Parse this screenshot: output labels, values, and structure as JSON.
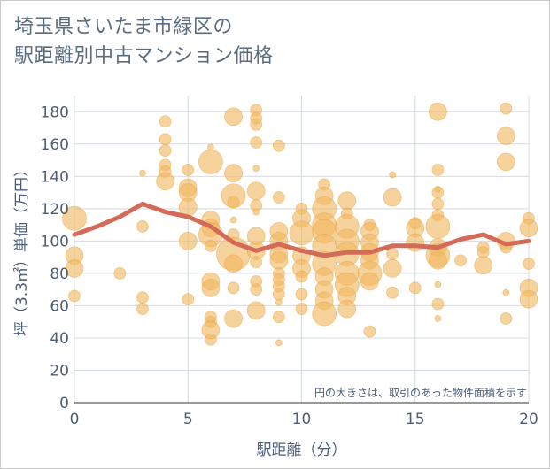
{
  "chart_data": {
    "type": "scatter",
    "title_lines": [
      "埼玉県さいたま市緑区の",
      "駅距離別中古マンション価格"
    ],
    "xlabel": "駅距離（分）",
    "ylabel": "坪（3.3㎡）単価（万円）",
    "xlim": [
      0,
      20
    ],
    "ylim": [
      0,
      190
    ],
    "x_ticks": [
      0,
      5,
      10,
      15,
      20
    ],
    "y_ticks": [
      0,
      20,
      40,
      60,
      80,
      100,
      120,
      140,
      160,
      180
    ],
    "grid": true,
    "annotation": "円の大きさは、取引のあった物件面積を示す",
    "bubble_color": "#f0b860",
    "line_color": "#d46a58",
    "series": [
      {
        "kind": "line",
        "x": [
          0,
          1,
          2,
          3,
          4,
          5,
          6,
          7,
          8,
          9,
          10,
          11,
          12,
          13,
          14,
          15,
          16,
          17,
          18,
          19,
          20
        ],
        "y": [
          104,
          109,
          115,
          123,
          118,
          115,
          109,
          99,
          94,
          98,
          94,
          91,
          93,
          93,
          97,
          97,
          96,
          101,
          104,
          98,
          100
        ]
      },
      {
        "kind": "bubble",
        "points": [
          {
            "x": 0,
            "y": 114,
            "s": 3
          },
          {
            "x": 0,
            "y": 91,
            "s": 2
          },
          {
            "x": 0,
            "y": 83,
            "s": 2
          },
          {
            "x": 0,
            "y": 66,
            "s": 1
          },
          {
            "x": 2,
            "y": 80,
            "s": 1
          },
          {
            "x": 3,
            "y": 142,
            "s": 0
          },
          {
            "x": 3,
            "y": 109,
            "s": 1
          },
          {
            "x": 3,
            "y": 65,
            "s": 1
          },
          {
            "x": 3,
            "y": 58,
            "s": 1
          },
          {
            "x": 4,
            "y": 174,
            "s": 1
          },
          {
            "x": 4,
            "y": 163,
            "s": 1
          },
          {
            "x": 4,
            "y": 156,
            "s": 1
          },
          {
            "x": 4,
            "y": 147,
            "s": 1
          },
          {
            "x": 4,
            "y": 143,
            "s": 1
          },
          {
            "x": 4,
            "y": 137,
            "s": 2
          },
          {
            "x": 5,
            "y": 144,
            "s": 1
          },
          {
            "x": 5,
            "y": 133,
            "s": 2
          },
          {
            "x": 5,
            "y": 130,
            "s": 2
          },
          {
            "x": 5,
            "y": 121,
            "s": 2
          },
          {
            "x": 5,
            "y": 100,
            "s": 2
          },
          {
            "x": 5,
            "y": 64,
            "s": 1
          },
          {
            "x": 6,
            "y": 158,
            "s": 0
          },
          {
            "x": 6,
            "y": 149,
            "s": 3
          },
          {
            "x": 6,
            "y": 113,
            "s": 2
          },
          {
            "x": 6,
            "y": 108,
            "s": 2
          },
          {
            "x": 6,
            "y": 104,
            "s": 3
          },
          {
            "x": 6,
            "y": 97,
            "s": 1
          },
          {
            "x": 6,
            "y": 75,
            "s": 2
          },
          {
            "x": 6,
            "y": 71,
            "s": 2
          },
          {
            "x": 6,
            "y": 53,
            "s": 1
          },
          {
            "x": 6,
            "y": 50,
            "s": 1
          },
          {
            "x": 6,
            "y": 45,
            "s": 2
          },
          {
            "x": 6,
            "y": 39,
            "s": 1
          },
          {
            "x": 7,
            "y": 177,
            "s": 2
          },
          {
            "x": 7,
            "y": 142,
            "s": 2
          },
          {
            "x": 7,
            "y": 128,
            "s": 3
          },
          {
            "x": 7,
            "y": 124,
            "s": 1
          },
          {
            "x": 7,
            "y": 113,
            "s": 0
          },
          {
            "x": 7,
            "y": 104,
            "s": 1
          },
          {
            "x": 7,
            "y": 92,
            "s": 4
          },
          {
            "x": 7,
            "y": 86,
            "s": 2
          },
          {
            "x": 7,
            "y": 71,
            "s": 1
          },
          {
            "x": 7,
            "y": 52,
            "s": 2
          },
          {
            "x": 8,
            "y": 181,
            "s": 1
          },
          {
            "x": 8,
            "y": 176,
            "s": 1
          },
          {
            "x": 8,
            "y": 172,
            "s": 1
          },
          {
            "x": 8,
            "y": 161,
            "s": 1
          },
          {
            "x": 8,
            "y": 145,
            "s": 0
          },
          {
            "x": 8,
            "y": 131,
            "s": 2
          },
          {
            "x": 8,
            "y": 122,
            "s": 1
          },
          {
            "x": 8,
            "y": 118,
            "s": 0
          },
          {
            "x": 8,
            "y": 103,
            "s": 2
          },
          {
            "x": 8,
            "y": 94,
            "s": 2
          },
          {
            "x": 8,
            "y": 87,
            "s": 1
          },
          {
            "x": 8,
            "y": 75,
            "s": 1
          },
          {
            "x": 8,
            "y": 70,
            "s": 1
          },
          {
            "x": 8,
            "y": 57,
            "s": 2
          },
          {
            "x": 9,
            "y": 159,
            "s": 1
          },
          {
            "x": 9,
            "y": 127,
            "s": 1
          },
          {
            "x": 9,
            "y": 106,
            "s": 2
          },
          {
            "x": 9,
            "y": 100,
            "s": 2
          },
          {
            "x": 9,
            "y": 92,
            "s": 2
          },
          {
            "x": 9,
            "y": 88,
            "s": 2
          },
          {
            "x": 9,
            "y": 80,
            "s": 1
          },
          {
            "x": 9,
            "y": 76,
            "s": 1
          },
          {
            "x": 9,
            "y": 72,
            "s": 1
          },
          {
            "x": 9,
            "y": 67,
            "s": 1
          },
          {
            "x": 9,
            "y": 62,
            "s": 0
          },
          {
            "x": 9,
            "y": 53,
            "s": 1
          },
          {
            "x": 9,
            "y": 37,
            "s": 0
          },
          {
            "x": 10,
            "y": 120,
            "s": 1
          },
          {
            "x": 10,
            "y": 114,
            "s": 2
          },
          {
            "x": 10,
            "y": 105,
            "s": 3
          },
          {
            "x": 10,
            "y": 91,
            "s": 2
          },
          {
            "x": 10,
            "y": 83,
            "s": 2
          },
          {
            "x": 10,
            "y": 78,
            "s": 1
          },
          {
            "x": 10,
            "y": 67,
            "s": 1
          },
          {
            "x": 10,
            "y": 58,
            "s": 1
          },
          {
            "x": 11,
            "y": 135,
            "s": 1
          },
          {
            "x": 11,
            "y": 128,
            "s": 2
          },
          {
            "x": 11,
            "y": 120,
            "s": 3
          },
          {
            "x": 11,
            "y": 110,
            "s": 3
          },
          {
            "x": 11,
            "y": 106,
            "s": 3
          },
          {
            "x": 11,
            "y": 97,
            "s": 3
          },
          {
            "x": 11,
            "y": 86,
            "s": 3
          },
          {
            "x": 11,
            "y": 78,
            "s": 2
          },
          {
            "x": 11,
            "y": 70,
            "s": 2
          },
          {
            "x": 11,
            "y": 63,
            "s": 2
          },
          {
            "x": 11,
            "y": 55,
            "s": 3
          },
          {
            "x": 12,
            "y": 125,
            "s": 2
          },
          {
            "x": 12,
            "y": 117,
            "s": 1
          },
          {
            "x": 12,
            "y": 109,
            "s": 3
          },
          {
            "x": 12,
            "y": 100,
            "s": 3
          },
          {
            "x": 12,
            "y": 92,
            "s": 3
          },
          {
            "x": 12,
            "y": 80,
            "s": 3
          },
          {
            "x": 12,
            "y": 73,
            "s": 3
          },
          {
            "x": 12,
            "y": 66,
            "s": 2
          },
          {
            "x": 12,
            "y": 58,
            "s": 2
          },
          {
            "x": 13,
            "y": 110,
            "s": 1
          },
          {
            "x": 13,
            "y": 106,
            "s": 2
          },
          {
            "x": 13,
            "y": 99,
            "s": 2
          },
          {
            "x": 13,
            "y": 93,
            "s": 2
          },
          {
            "x": 13,
            "y": 88,
            "s": 2
          },
          {
            "x": 13,
            "y": 80,
            "s": 3
          },
          {
            "x": 13,
            "y": 75,
            "s": 2
          },
          {
            "x": 13,
            "y": 44,
            "s": 1
          },
          {
            "x": 14,
            "y": 141,
            "s": 0
          },
          {
            "x": 14,
            "y": 127,
            "s": 2
          },
          {
            "x": 14,
            "y": 92,
            "s": 1
          },
          {
            "x": 14,
            "y": 83,
            "s": 2
          },
          {
            "x": 14,
            "y": 68,
            "s": 1
          },
          {
            "x": 15,
            "y": 111,
            "s": 1
          },
          {
            "x": 15,
            "y": 108,
            "s": 2
          },
          {
            "x": 15,
            "y": 99,
            "s": 2
          },
          {
            "x": 15,
            "y": 71,
            "s": 1
          },
          {
            "x": 16,
            "y": 180,
            "s": 2
          },
          {
            "x": 16,
            "y": 144,
            "s": 1
          },
          {
            "x": 16,
            "y": 132,
            "s": 0
          },
          {
            "x": 16,
            "y": 130,
            "s": 1
          },
          {
            "x": 16,
            "y": 123,
            "s": 1
          },
          {
            "x": 16,
            "y": 116,
            "s": 1
          },
          {
            "x": 16,
            "y": 109,
            "s": 3
          },
          {
            "x": 16,
            "y": 96,
            "s": 2
          },
          {
            "x": 16,
            "y": 91,
            "s": 3
          },
          {
            "x": 16,
            "y": 88,
            "s": 2
          },
          {
            "x": 16,
            "y": 73,
            "s": 0
          },
          {
            "x": 16,
            "y": 61,
            "s": 1
          },
          {
            "x": 16,
            "y": 52,
            "s": 0
          },
          {
            "x": 17,
            "y": 88,
            "s": 1
          },
          {
            "x": 18,
            "y": 96,
            "s": 1
          },
          {
            "x": 18,
            "y": 93,
            "s": 1
          },
          {
            "x": 18,
            "y": 85,
            "s": 2
          },
          {
            "x": 19,
            "y": 182,
            "s": 1
          },
          {
            "x": 19,
            "y": 165,
            "s": 2
          },
          {
            "x": 19,
            "y": 149,
            "s": 2
          },
          {
            "x": 19,
            "y": 100,
            "s": 2
          },
          {
            "x": 19,
            "y": 96,
            "s": 1
          },
          {
            "x": 19,
            "y": 68,
            "s": 0
          },
          {
            "x": 19,
            "y": 52,
            "s": 1
          },
          {
            "x": 20,
            "y": 114,
            "s": 1
          },
          {
            "x": 20,
            "y": 108,
            "s": 2
          },
          {
            "x": 20,
            "y": 86,
            "s": 1
          },
          {
            "x": 20,
            "y": 71,
            "s": 2
          },
          {
            "x": 20,
            "y": 64,
            "s": 2
          }
        ]
      }
    ]
  }
}
